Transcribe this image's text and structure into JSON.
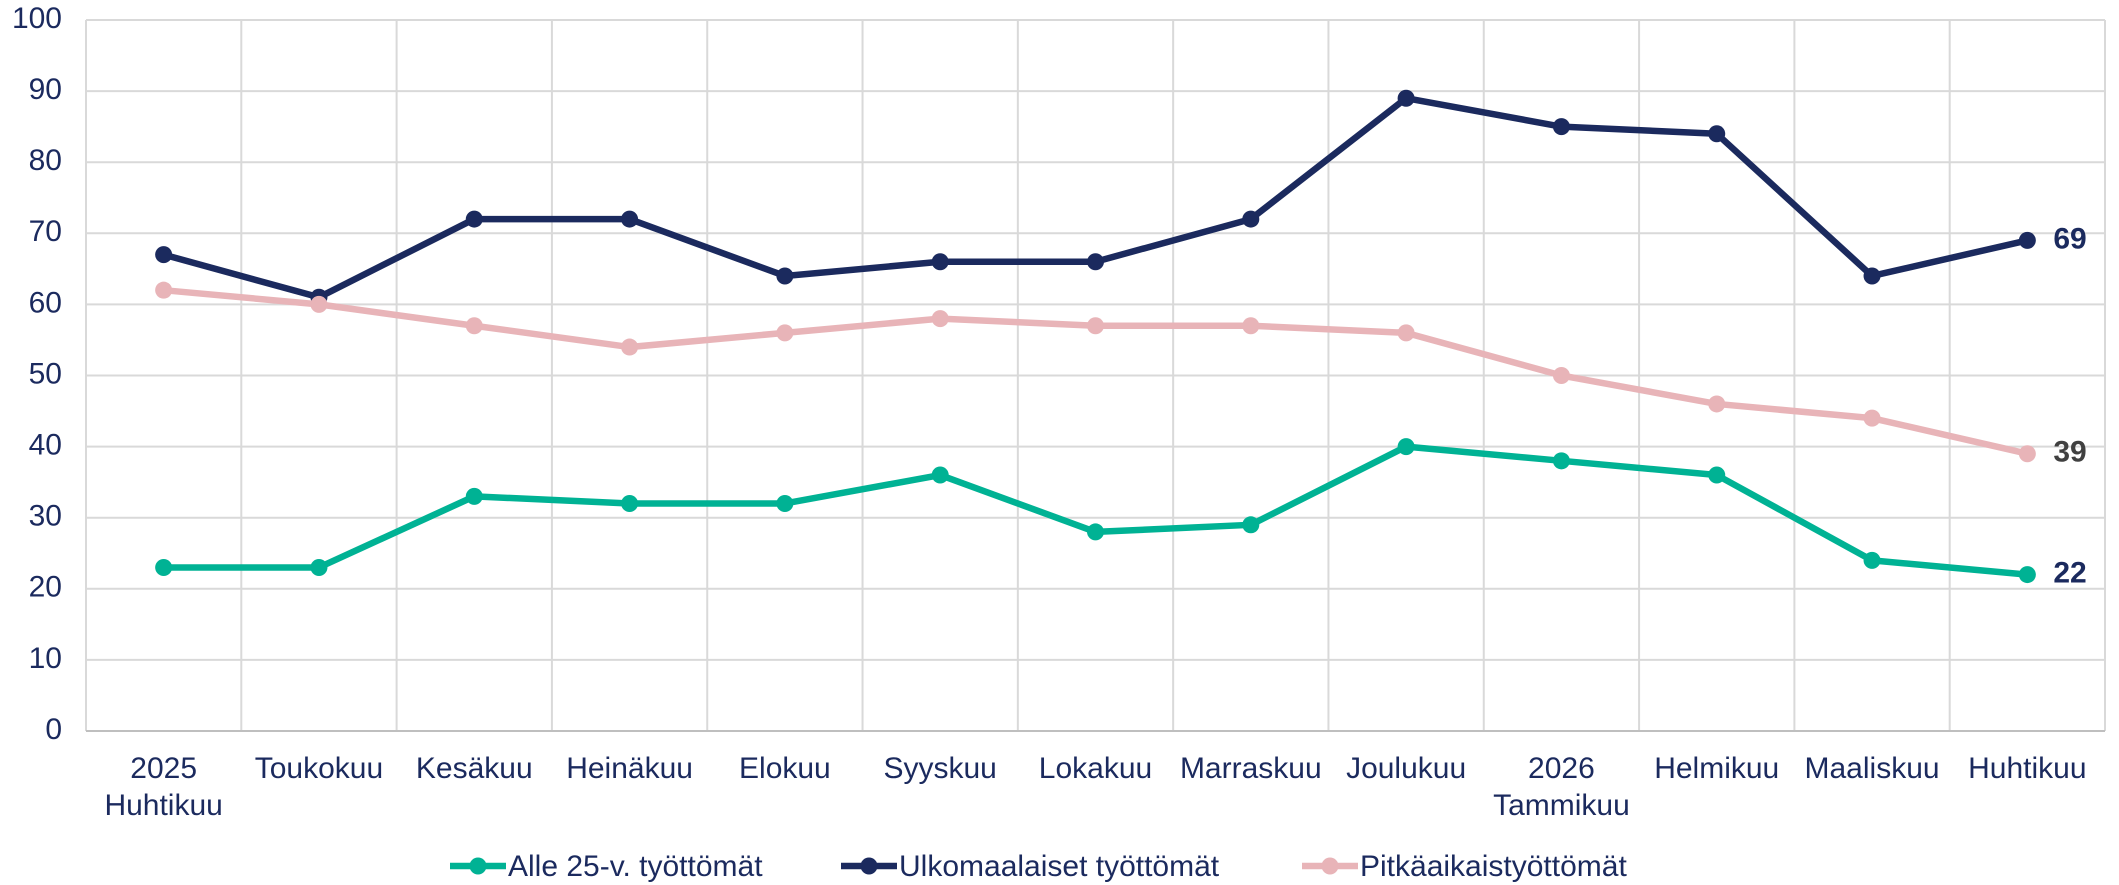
{
  "chart_data": {
    "type": "line",
    "categories": [
      [
        "2025",
        "Huhtikuu"
      ],
      [
        "Toukokuu"
      ],
      [
        "Kesäkuu"
      ],
      [
        "Heinäkuu"
      ],
      [
        "Elokuu"
      ],
      [
        "Syyskuu"
      ],
      [
        "Lokakuu"
      ],
      [
        "Marraskuu"
      ],
      [
        "Joulukuu"
      ],
      [
        "2026",
        "Tammikuu"
      ],
      [
        "Helmikuu"
      ],
      [
        "Maaliskuu"
      ],
      [
        "Huhtikuu"
      ]
    ],
    "series": [
      {
        "name": "Alle 25-v. työttömät",
        "color": "#00b294",
        "label_color": "#1b2a5e",
        "values": [
          23,
          23,
          33,
          32,
          32,
          36,
          28,
          29,
          40,
          38,
          36,
          24,
          22
        ]
      },
      {
        "name": "Ulkomaalaiset työttömät",
        "color": "#1b2a5e",
        "label_color": "#1b2a5e",
        "values": [
          67,
          61,
          72,
          72,
          64,
          66,
          66,
          72,
          89,
          85,
          84,
          64,
          69
        ]
      },
      {
        "name": "Pitkäaikaistyöttömät",
        "color": "#e8b4b8",
        "label_color": "#404040",
        "values": [
          62,
          60,
          57,
          54,
          56,
          58,
          57,
          57,
          56,
          50,
          46,
          44,
          39
        ]
      }
    ],
    "ylim": [
      0,
      100
    ],
    "yticks": [
      0,
      10,
      20,
      30,
      40,
      50,
      60,
      70,
      80,
      90,
      100
    ],
    "grid": true,
    "legend": "bottom"
  }
}
